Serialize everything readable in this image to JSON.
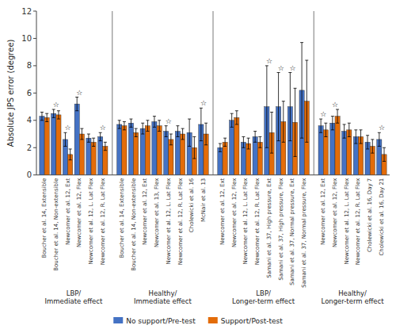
{
  "chart_data": {
    "type": "bar",
    "ylabel": "Absolute JPS error (degree)",
    "ylim": [
      0,
      12
    ],
    "yticks": [
      0,
      2,
      4,
      6,
      8,
      10,
      12
    ],
    "grid": false,
    "legend": "bottom",
    "groups": [
      {
        "label": "LBP/\nImmediate effect",
        "categories": [
          "Boucher et al. 14, Extensible",
          "Boucher et al. 14, Non-extensible",
          "Newcomer et al. 12, Ext",
          "Newcomer et al. 12, Flex",
          "Newcomer et al. 12, L. Lat Flex",
          "Newcomer et al. 12, R. Lat Flex"
        ]
      },
      {
        "label": "Healthy/\nImmediate effect",
        "categories": [
          "Boucher et al. 14, Extensible",
          "Boucher et al. 14, Non-extensible",
          "Newcomer et al. 12, Ext",
          "Newcomer et al. 13, Flex",
          "Newcomer et al. 12, L. Lat Flex",
          "Newcomer et al. 12, R. Lat Flex",
          "Cholewicki et al. 16",
          "McNair et al. 13"
        ]
      },
      {
        "label": "LBP/\nLonger-term effect",
        "categories": [
          "Newcomer et al. 12, Ext",
          "Newcomer et al. 12, Flex",
          "Newcomer et al. 12, L. Lat Flex",
          "Newcomer et al. 12, R. Lat Flex",
          "Samani et al. 37, High pressure, Ext",
          "Samani et al. 37, High pressure, Flex",
          "Samani et al. 37, Normal pressure, Ext",
          "Samani et al. 37, Normal pressure, Flex"
        ]
      },
      {
        "label": "Healthy/\nLonger-term effect",
        "categories": [
          "Newcomer et al. 12, Ext",
          "Newcomer et al. 12, Flex",
          "Newcomer et al. 12, L. Lat Flex",
          "Newcomer et al. 12, R. Lat Flex",
          "Cholewicki et al. 16, Day 7",
          "Cholewicki et al. 16, Day 21"
        ]
      }
    ],
    "series": [
      {
        "name": "No support/Pre-test",
        "color": "#4472C4",
        "values": [
          4.3,
          4.5,
          2.6,
          5.2,
          2.7,
          2.8,
          3.7,
          3.8,
          3.4,
          3.9,
          3.2,
          3.2,
          3.1,
          3.7,
          2.0,
          4.0,
          2.4,
          2.8,
          5.0,
          5.0,
          5.0,
          6.2,
          3.6,
          3.8,
          3.2,
          2.8,
          2.4,
          2.6
        ],
        "errors": [
          0.3,
          0.3,
          0.5,
          0.5,
          0.3,
          0.3,
          0.3,
          0.3,
          0.4,
          0.4,
          0.4,
          0.4,
          1.0,
          1.2,
          0.3,
          0.5,
          0.4,
          0.4,
          3.0,
          2.5,
          2.5,
          3.5,
          0.5,
          0.5,
          0.5,
          0.5,
          0.5,
          0.5
        ]
      },
      {
        "name": "Support/Post-test",
        "color": "#E36C09",
        "values": [
          4.2,
          4.4,
          1.5,
          3.0,
          2.4,
          2.1,
          3.6,
          3.1,
          3.6,
          3.6,
          2.6,
          3.0,
          2.0,
          3.0,
          2.4,
          4.2,
          2.3,
          2.4,
          3.1,
          3.9,
          3.85,
          5.4,
          3.3,
          4.3,
          3.3,
          2.8,
          2.1,
          1.5
        ],
        "errors": [
          0.3,
          0.3,
          0.4,
          0.4,
          0.3,
          0.3,
          0.3,
          0.3,
          0.4,
          0.4,
          0.4,
          0.4,
          0.8,
          0.8,
          0.3,
          0.5,
          0.4,
          0.4,
          1.5,
          1.5,
          2.5,
          3.0,
          0.5,
          0.5,
          0.5,
          0.5,
          0.5,
          0.5
        ]
      }
    ],
    "significance": {
      "label": "☆",
      "flags": [
        false,
        true,
        true,
        true,
        false,
        true,
        false,
        false,
        false,
        false,
        true,
        false,
        false,
        true,
        false,
        false,
        false,
        false,
        true,
        true,
        true,
        false,
        true,
        true,
        false,
        false,
        false,
        true
      ]
    }
  }
}
